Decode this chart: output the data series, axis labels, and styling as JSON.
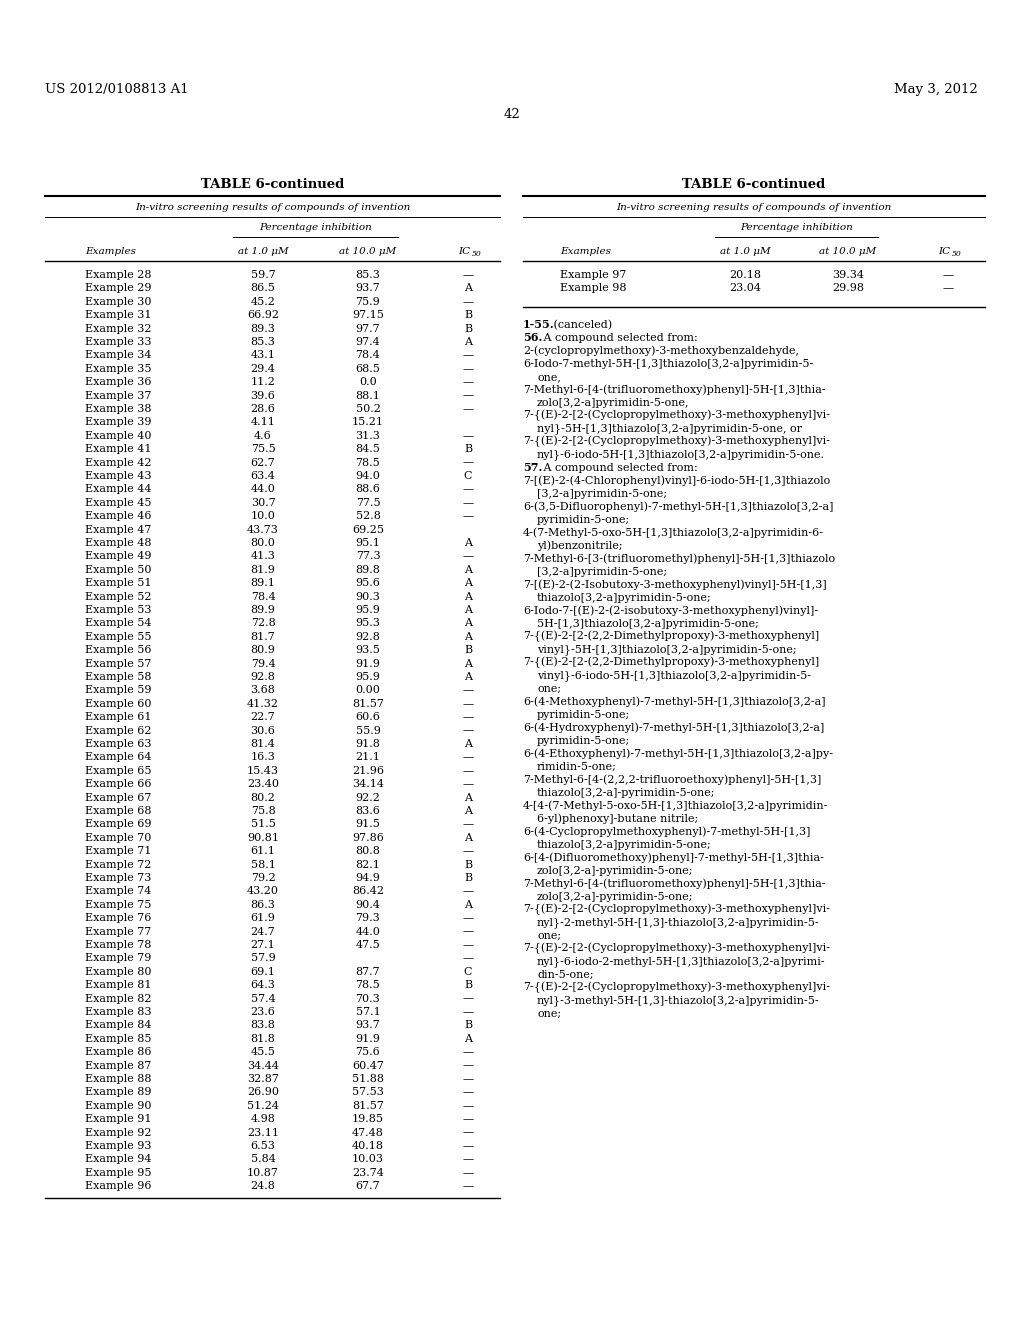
{
  "patent_left": "US 2012/0108813 A1",
  "patent_right": "May 3, 2012",
  "page_number": "42",
  "table_title": "TABLE 6-continued",
  "table_subtitle": "In-vitro screening results of compounds of invention",
  "col_header_1": "Examples",
  "col_header_2": "at 1.0 μM",
  "col_header_3": "at 10.0 μM",
  "col_header_4": "IC",
  "col_header_4_sub": "50",
  "pct_inhibition_label": "Percentage inhibition",
  "left_table_data": [
    [
      "Example 28",
      "59.7",
      "85.3",
      "—"
    ],
    [
      "Example 29",
      "86.5",
      "93.7",
      "A"
    ],
    [
      "Example 30",
      "45.2",
      "75.9",
      "—"
    ],
    [
      "Example 31",
      "66.92",
      "97.15",
      "B"
    ],
    [
      "Example 32",
      "89.3",
      "97.7",
      "B"
    ],
    [
      "Example 33",
      "85.3",
      "97.4",
      "A"
    ],
    [
      "Example 34",
      "43.1",
      "78.4",
      "—"
    ],
    [
      "Example 35",
      "29.4",
      "68.5",
      "—"
    ],
    [
      "Example 36",
      "11.2",
      "0.0",
      "—"
    ],
    [
      "Example 37",
      "39.6",
      "88.1",
      "—"
    ],
    [
      "Example 38",
      "28.6",
      "50.2",
      "—"
    ],
    [
      "Example 39",
      "4.11",
      "15.21",
      ""
    ],
    [
      "Example 40",
      "4.6",
      "31.3",
      "—"
    ],
    [
      "Example 41",
      "75.5",
      "84.5",
      "B"
    ],
    [
      "Example 42",
      "62.7",
      "78.5",
      "—"
    ],
    [
      "Example 43",
      "63.4",
      "94.0",
      "C"
    ],
    [
      "Example 44",
      "44.0",
      "88.6",
      "—"
    ],
    [
      "Example 45",
      "30.7",
      "77.5",
      "—"
    ],
    [
      "Example 46",
      "10.0",
      "52.8",
      "—"
    ],
    [
      "Example 47",
      "43.73",
      "69.25",
      ""
    ],
    [
      "Example 48",
      "80.0",
      "95.1",
      "A"
    ],
    [
      "Example 49",
      "41.3",
      "77.3",
      "—"
    ],
    [
      "Example 50",
      "81.9",
      "89.8",
      "A"
    ],
    [
      "Example 51",
      "89.1",
      "95.6",
      "A"
    ],
    [
      "Example 52",
      "78.4",
      "90.3",
      "A"
    ],
    [
      "Example 53",
      "89.9",
      "95.9",
      "A"
    ],
    [
      "Example 54",
      "72.8",
      "95.3",
      "A"
    ],
    [
      "Example 55",
      "81.7",
      "92.8",
      "A"
    ],
    [
      "Example 56",
      "80.9",
      "93.5",
      "B"
    ],
    [
      "Example 57",
      "79.4",
      "91.9",
      "A"
    ],
    [
      "Example 58",
      "92.8",
      "95.9",
      "A"
    ],
    [
      "Example 59",
      "3.68",
      "0.00",
      "—"
    ],
    [
      "Example 60",
      "41.32",
      "81.57",
      "—"
    ],
    [
      "Example 61",
      "22.7",
      "60.6",
      "—"
    ],
    [
      "Example 62",
      "30.6",
      "55.9",
      "—"
    ],
    [
      "Example 63",
      "81.4",
      "91.8",
      "A"
    ],
    [
      "Example 64",
      "16.3",
      "21.1",
      "—"
    ],
    [
      "Example 65",
      "15.43",
      "21.96",
      "—"
    ],
    [
      "Example 66",
      "23.40",
      "34.14",
      "—"
    ],
    [
      "Example 67",
      "80.2",
      "92.2",
      "A"
    ],
    [
      "Example 68",
      "75.8",
      "83.6",
      "A"
    ],
    [
      "Example 69",
      "51.5",
      "91.5",
      "—"
    ],
    [
      "Example 70",
      "90.81",
      "97.86",
      "A"
    ],
    [
      "Example 71",
      "61.1",
      "80.8",
      "—"
    ],
    [
      "Example 72",
      "58.1",
      "82.1",
      "B"
    ],
    [
      "Example 73",
      "79.2",
      "94.9",
      "B"
    ],
    [
      "Example 74",
      "43.20",
      "86.42",
      "—"
    ],
    [
      "Example 75",
      "86.3",
      "90.4",
      "A"
    ],
    [
      "Example 76",
      "61.9",
      "79.3",
      "—"
    ],
    [
      "Example 77",
      "24.7",
      "44.0",
      "—"
    ],
    [
      "Example 78",
      "27.1",
      "47.5",
      "—"
    ],
    [
      "Example 79",
      "57.9",
      "",
      "—"
    ],
    [
      "Example 80",
      "69.1",
      "87.7",
      "C"
    ],
    [
      "Example 81",
      "64.3",
      "78.5",
      "B"
    ],
    [
      "Example 82",
      "57.4",
      "70.3",
      "—"
    ],
    [
      "Example 83",
      "23.6",
      "57.1",
      "—"
    ],
    [
      "Example 84",
      "83.8",
      "93.7",
      "B"
    ],
    [
      "Example 85",
      "81.8",
      "91.9",
      "A"
    ],
    [
      "Example 86",
      "45.5",
      "75.6",
      "—"
    ],
    [
      "Example 87",
      "34.44",
      "60.47",
      "—"
    ],
    [
      "Example 88",
      "32.87",
      "51.88",
      "—"
    ],
    [
      "Example 89",
      "26.90",
      "57.53",
      "—"
    ],
    [
      "Example 90",
      "51.24",
      "81.57",
      "—"
    ],
    [
      "Example 91",
      "4.98",
      "19.85",
      "—"
    ],
    [
      "Example 92",
      "23.11",
      "47.48",
      "—"
    ],
    [
      "Example 93",
      "6.53",
      "40.18",
      "—"
    ],
    [
      "Example 94",
      "5.84",
      "10.03",
      "—"
    ],
    [
      "Example 95",
      "10.87",
      "23.74",
      "—"
    ],
    [
      "Example 96",
      "24.8",
      "67.7",
      "—"
    ]
  ],
  "right_table_data": [
    [
      "Example 97",
      "20.18",
      "39.34",
      "—"
    ],
    [
      "Example 98",
      "23.04",
      "29.98",
      "—"
    ]
  ],
  "right_text_paragraphs": [
    {
      "lines": [
        "1-55. (canceled)"
      ],
      "bold_prefix": "1-55",
      "indent_after": false
    },
    {
      "lines": [
        "56. A compound selected from:"
      ],
      "bold_prefix": "56",
      "indent_after": false
    },
    {
      "lines": [
        "2-(cyclopropylmethoxy)-3-methoxybenzaldehyde,"
      ],
      "bold_prefix": "",
      "indent_after": false
    },
    {
      "lines": [
        "6-Iodo-7-methyl-5H-[1,3]thiazolo[3,2-a]pyrimidin-5-",
        "one,"
      ],
      "bold_prefix": "",
      "indent_after": true
    },
    {
      "lines": [
        "7-Methyl-6-[4-(trifluoromethoxy)phenyl]-5H-[1,3]thia-",
        "zolo[3,2-a]pyrimidin-5-one,"
      ],
      "bold_prefix": "",
      "indent_after": true
    },
    {
      "lines": [
        "7-{(E)-2-[2-(Cyclopropylmethoxy)-3-methoxyphenyl]vi-",
        "nyl}-5H-[1,3]thiazolo[3,2-a]pyrimidin-5-one, or"
      ],
      "bold_prefix": "",
      "indent_after": true
    },
    {
      "lines": [
        "7-{(E)-2-[2-(Cyclopropylmethoxy)-3-methoxyphenyl]vi-",
        "nyl}-6-iodo-5H-[1,3]thiazolo[3,2-a]pyrimidin-5-one."
      ],
      "bold_prefix": "",
      "indent_after": true
    },
    {
      "lines": [
        "57. A compound selected from:"
      ],
      "bold_prefix": "57",
      "indent_after": false
    },
    {
      "lines": [
        "7-[(E)-2-(4-Chlorophenyl)vinyl]-6-iodo-5H-[1,3]thiazolo",
        "[3,2-a]pyrimidin-5-one;"
      ],
      "bold_prefix": "",
      "indent_after": true
    },
    {
      "lines": [
        "6-(3,5-Difluorophenyl)-7-methyl-5H-[1,3]thiazolo[3,2-a]",
        "pyrimidin-5-one;"
      ],
      "bold_prefix": "",
      "indent_after": true
    },
    {
      "lines": [
        "4-(7-Methyl-5-oxo-5H-[1,3]thiazolo[3,2-a]pyrimidin-6-",
        "yl)benzonitrile;"
      ],
      "bold_prefix": "",
      "indent_after": true
    },
    {
      "lines": [
        "7-Methyl-6-[3-(trifluoromethyl)phenyl]-5H-[1,3]thiazolo",
        "[3,2-a]pyrimidin-5-one;"
      ],
      "bold_prefix": "",
      "indent_after": true
    },
    {
      "lines": [
        "7-[(E)-2-(2-Isobutoxy-3-methoxyphenyl)vinyl]-5H-[1,3]",
        "thiazolo[3,2-a]pyrimidin-5-one;"
      ],
      "bold_prefix": "",
      "indent_after": true
    },
    {
      "lines": [
        "6-Iodo-7-[(E)-2-(2-isobutoxy-3-methoxyphenyl)vinyl]-",
        "5H-[1,3]thiazolo[3,2-a]pyrimidin-5-one;"
      ],
      "bold_prefix": "",
      "indent_after": true
    },
    {
      "lines": [
        "7-{(E)-2-[2-(2,2-Dimethylpropoxy)-3-methoxyphenyl]",
        "vinyl}-5H-[1,3]thiazolo[3,2-a]pyrimidin-5-one;"
      ],
      "bold_prefix": "",
      "indent_after": true
    },
    {
      "lines": [
        "7-{(E)-2-[2-(2,2-Dimethylpropoxy)-3-methoxyphenyl]",
        "vinyl}-6-iodo-5H-[1,3]thiazolo[3,2-a]pyrimidin-5-",
        "one;"
      ],
      "bold_prefix": "",
      "indent_after": true
    },
    {
      "lines": [
        "6-(4-Methoxyphenyl)-7-methyl-5H-[1,3]thiazolo[3,2-a]",
        "pyrimidin-5-one;"
      ],
      "bold_prefix": "",
      "indent_after": true
    },
    {
      "lines": [
        "6-(4-Hydroxyphenyl)-7-methyl-5H-[1,3]thiazolo[3,2-a]",
        "pyrimidin-5-one;"
      ],
      "bold_prefix": "",
      "indent_after": true
    },
    {
      "lines": [
        "6-(4-Ethoxyphenyl)-7-methyl-5H-[1,3]thiazolo[3,2-a]py-",
        "rimidin-5-one;"
      ],
      "bold_prefix": "",
      "indent_after": true
    },
    {
      "lines": [
        "7-Methyl-6-[4-(2,2,2-trifluoroethoxy)phenyl]-5H-[1,3]",
        "thiazolo[3,2-a]-pyrimidin-5-one;"
      ],
      "bold_prefix": "",
      "indent_after": true
    },
    {
      "lines": [
        "4-[4-(7-Methyl-5-oxo-5H-[1,3]thiazolo[3,2-a]pyrimidin-",
        "6-yl)phenoxy]-butane nitrile;"
      ],
      "bold_prefix": "",
      "indent_after": true
    },
    {
      "lines": [
        "6-(4-Cyclopropylmethoxyphenyl)-7-methyl-5H-[1,3]",
        "thiazolo[3,2-a]pyrimidin-5-one;"
      ],
      "bold_prefix": "",
      "indent_after": true
    },
    {
      "lines": [
        "6-[4-(Difluoromethoxy)phenyl]-7-methyl-5H-[1,3]thia-",
        "zolo[3,2-a]-pyrimidin-5-one;"
      ],
      "bold_prefix": "",
      "indent_after": true
    },
    {
      "lines": [
        "7-Methyl-6-[4-(trifluoromethoxy)phenyl]-5H-[1,3]thia-",
        "zolo[3,2-a]-pyrimidin-5-one;"
      ],
      "bold_prefix": "",
      "indent_after": true
    },
    {
      "lines": [
        "7-{(E)-2-[2-(Cyclopropylmethoxy)-3-methoxyphenyl]vi-",
        "nyl}-2-methyl-5H-[1,3]-thiazolo[3,2-a]pyrimidin-5-",
        "one;"
      ],
      "bold_prefix": "",
      "indent_after": true
    },
    {
      "lines": [
        "7-{(E)-2-[2-(Cyclopropylmethoxy)-3-methoxyphenyl]vi-",
        "nyl}-6-iodo-2-methyl-5H-[1,3]thiazolo[3,2-a]pyrimi-",
        "din-5-one;"
      ],
      "bold_prefix": "",
      "indent_after": true
    },
    {
      "lines": [
        "7-{(E)-2-[2-(Cyclopropylmethoxy)-3-methoxyphenyl]vi-",
        "nyl}-3-methyl-5H-[1,3]-thiazolo[3,2-a]pyrimidin-5-",
        "one;"
      ],
      "bold_prefix": "",
      "indent_after": true
    }
  ]
}
